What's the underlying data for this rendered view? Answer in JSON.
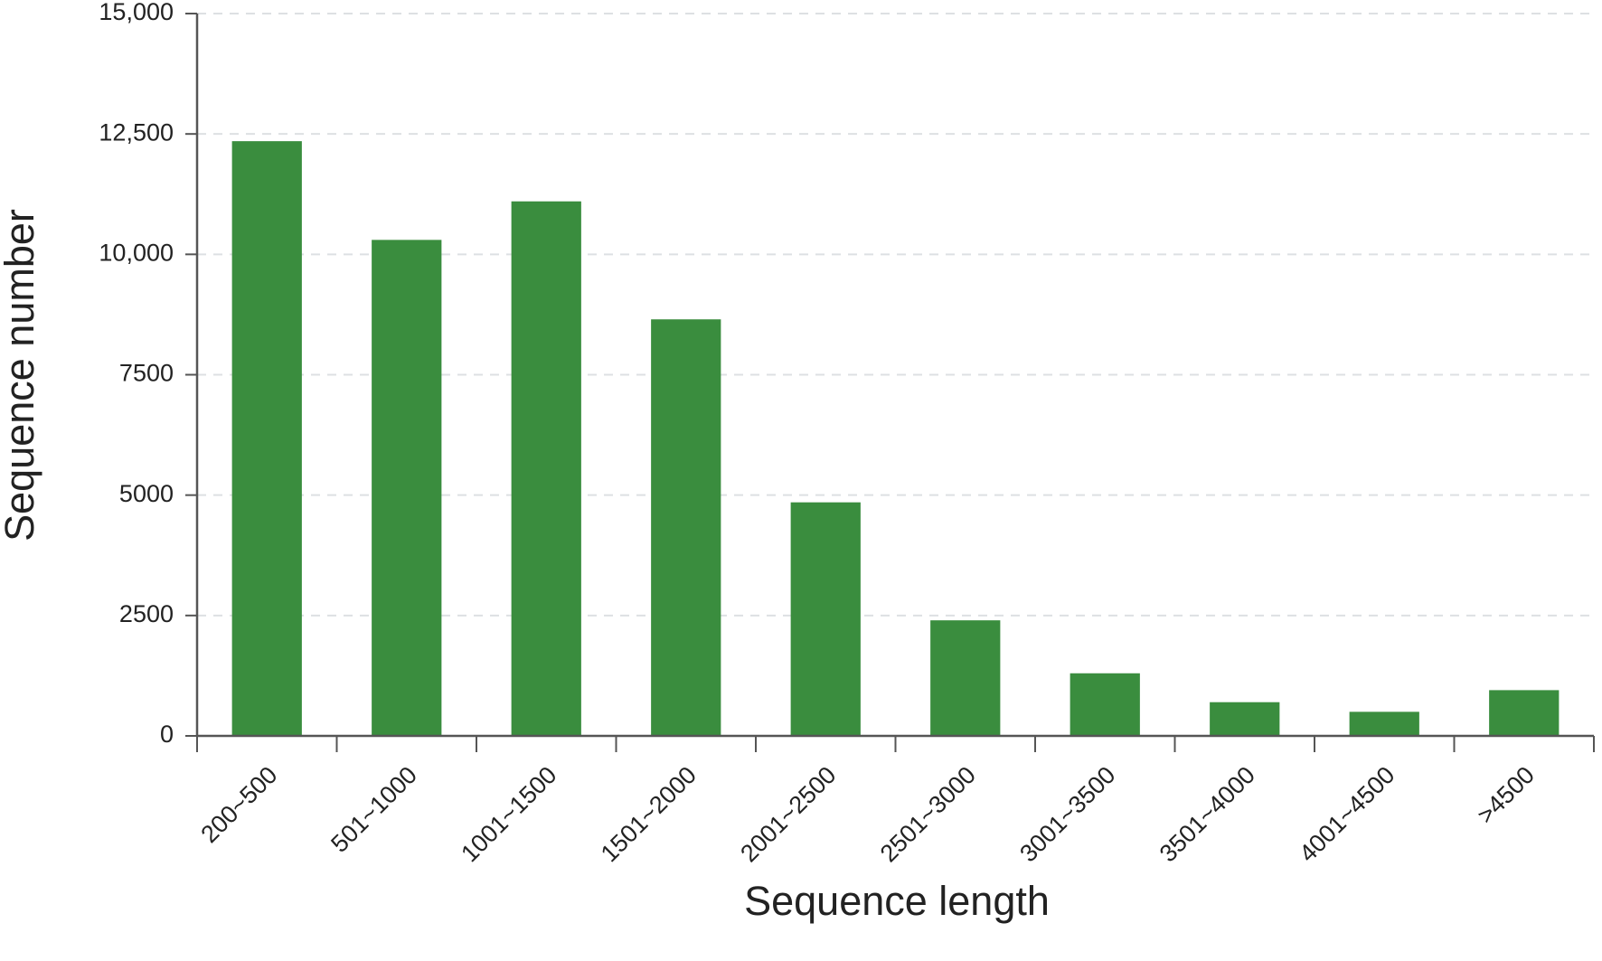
{
  "chart_data": {
    "type": "bar",
    "x_label": "Sequence length",
    "y_label": "Sequence number",
    "categories": [
      "200~500",
      "501~1000",
      "1001~1500",
      "1501~2000",
      "2001~2500",
      "2501~3000",
      "3001~3500",
      "3501~4000",
      "4001~4500",
      ">4500"
    ],
    "values": [
      12350,
      10300,
      11100,
      8650,
      4850,
      2400,
      1300,
      700,
      500,
      950
    ],
    "color": "#3a8d3e",
    "ylim": [
      0,
      15000
    ],
    "yticks": [
      0,
      2500,
      5000,
      7500,
      {
        "value": 10000,
        "label": "10,000"
      },
      {
        "value": 12500,
        "label": "12,500"
      },
      {
        "value": 15000,
        "label": "15,000"
      }
    ],
    "grid": true
  }
}
